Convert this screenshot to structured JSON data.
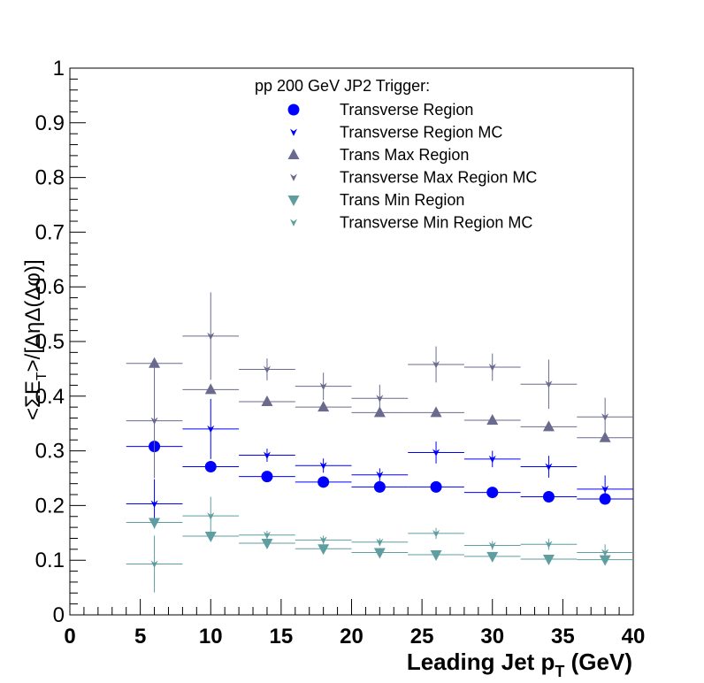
{
  "chart_data": {
    "type": "scatter",
    "legend_title": "pp 200 GeV JP2 Trigger:",
    "xlabel": "Leading Jet p",
    "xlabel_sub": "T",
    "xlabel_suffix": " (GeV)",
    "ylabel_parts": [
      "<ΣE",
      "T",
      ">/[ΔηΔ(Δφ)]"
    ],
    "xlim": [
      0,
      40
    ],
    "ylim": [
      0,
      1
    ],
    "xticks": [
      0,
      5,
      10,
      15,
      20,
      25,
      30,
      35,
      40
    ],
    "yticks": [
      0,
      0.1,
      0.2,
      0.3,
      0.4,
      0.5,
      0.6,
      0.7,
      0.8,
      0.9,
      1
    ],
    "ytick_labels": [
      "0",
      "0.1",
      "0.2",
      "0.3",
      "0.4",
      "0.5",
      "0.6",
      "0.7",
      "0.8",
      "0.9",
      "1"
    ],
    "legend_position": "top-center",
    "grid": false,
    "series": [
      {
        "name": "Transverse Region",
        "marker": "circle",
        "color": "#0000ff",
        "points": [
          {
            "x": 6,
            "y": 0.308,
            "xlo": 4,
            "xhi": 8,
            "err": 0.0
          },
          {
            "x": 10,
            "y": 0.271,
            "xlo": 8,
            "xhi": 12,
            "err": 0.0
          },
          {
            "x": 14,
            "y": 0.253,
            "xlo": 12,
            "xhi": 16,
            "err": 0.0
          },
          {
            "x": 18,
            "y": 0.243,
            "xlo": 16,
            "xhi": 20,
            "err": 0.0
          },
          {
            "x": 22,
            "y": 0.234,
            "xlo": 20,
            "xhi": 24,
            "err": 0.0
          },
          {
            "x": 26,
            "y": 0.234,
            "xlo": 24,
            "xhi": 28,
            "err": 0.0
          },
          {
            "x": 30,
            "y": 0.224,
            "xlo": 28,
            "xhi": 32,
            "err": 0.0
          },
          {
            "x": 34,
            "y": 0.216,
            "xlo": 32,
            "xhi": 36,
            "err": 0.0
          },
          {
            "x": 38,
            "y": 0.212,
            "xlo": 36,
            "xhi": 40,
            "err": 0.0
          }
        ]
      },
      {
        "name": "Transverse Region MC",
        "marker": "star",
        "color": "#0000ff",
        "points": [
          {
            "x": 6,
            "y": 0.203,
            "xlo": 4,
            "xhi": 8,
            "err": 0.045
          },
          {
            "x": 10,
            "y": 0.34,
            "xlo": 8,
            "xhi": 12,
            "err": 0.055
          },
          {
            "x": 14,
            "y": 0.292,
            "xlo": 12,
            "xhi": 16,
            "err": 0.012
          },
          {
            "x": 18,
            "y": 0.273,
            "xlo": 16,
            "xhi": 20,
            "err": 0.013
          },
          {
            "x": 22,
            "y": 0.256,
            "xlo": 20,
            "xhi": 24,
            "err": 0.012
          },
          {
            "x": 26,
            "y": 0.297,
            "xlo": 24,
            "xhi": 28,
            "err": 0.02
          },
          {
            "x": 30,
            "y": 0.285,
            "xlo": 28,
            "xhi": 32,
            "err": 0.015
          },
          {
            "x": 34,
            "y": 0.271,
            "xlo": 32,
            "xhi": 36,
            "err": 0.02
          },
          {
            "x": 38,
            "y": 0.23,
            "xlo": 36,
            "xhi": 40,
            "err": 0.025
          }
        ]
      },
      {
        "name": "Trans Max Region",
        "marker": "triangle-up",
        "color": "#6a6a8e",
        "points": [
          {
            "x": 6,
            "y": 0.46,
            "xlo": 4,
            "xhi": 8,
            "err": 0.0
          },
          {
            "x": 10,
            "y": 0.412,
            "xlo": 8,
            "xhi": 12,
            "err": 0.0
          },
          {
            "x": 14,
            "y": 0.39,
            "xlo": 12,
            "xhi": 16,
            "err": 0.0
          },
          {
            "x": 18,
            "y": 0.38,
            "xlo": 16,
            "xhi": 20,
            "err": 0.0
          },
          {
            "x": 22,
            "y": 0.37,
            "xlo": 20,
            "xhi": 24,
            "err": 0.0
          },
          {
            "x": 26,
            "y": 0.37,
            "xlo": 24,
            "xhi": 28,
            "err": 0.0
          },
          {
            "x": 30,
            "y": 0.356,
            "xlo": 28,
            "xhi": 32,
            "err": 0.0
          },
          {
            "x": 34,
            "y": 0.344,
            "xlo": 32,
            "xhi": 36,
            "err": 0.0
          },
          {
            "x": 38,
            "y": 0.324,
            "xlo": 36,
            "xhi": 40,
            "err": 0.0
          }
        ]
      },
      {
        "name": "Transverse Max Region MC",
        "marker": "star",
        "color": "#6a6a8e",
        "points": [
          {
            "x": 6,
            "y": 0.355,
            "xlo": 4,
            "xhi": 8,
            "err": 0.105
          },
          {
            "x": 10,
            "y": 0.51,
            "xlo": 8,
            "xhi": 12,
            "err": 0.08
          },
          {
            "x": 14,
            "y": 0.449,
            "xlo": 12,
            "xhi": 16,
            "err": 0.02
          },
          {
            "x": 18,
            "y": 0.418,
            "xlo": 16,
            "xhi": 20,
            "err": 0.025
          },
          {
            "x": 22,
            "y": 0.396,
            "xlo": 20,
            "xhi": 24,
            "err": 0.025
          },
          {
            "x": 26,
            "y": 0.458,
            "xlo": 24,
            "xhi": 28,
            "err": 0.033
          },
          {
            "x": 30,
            "y": 0.453,
            "xlo": 28,
            "xhi": 32,
            "err": 0.025
          },
          {
            "x": 34,
            "y": 0.422,
            "xlo": 32,
            "xhi": 36,
            "err": 0.045
          },
          {
            "x": 38,
            "y": 0.362,
            "xlo": 36,
            "xhi": 40,
            "err": 0.035
          }
        ]
      },
      {
        "name": "Trans Min Region",
        "marker": "triangle-down",
        "color": "#5f9ea0",
        "points": [
          {
            "x": 6,
            "y": 0.169,
            "xlo": 4,
            "xhi": 8,
            "err": 0.0
          },
          {
            "x": 10,
            "y": 0.144,
            "xlo": 8,
            "xhi": 12,
            "err": 0.0
          },
          {
            "x": 14,
            "y": 0.131,
            "xlo": 12,
            "xhi": 16,
            "err": 0.0
          },
          {
            "x": 18,
            "y": 0.121,
            "xlo": 16,
            "xhi": 20,
            "err": 0.0
          },
          {
            "x": 22,
            "y": 0.114,
            "xlo": 20,
            "xhi": 24,
            "err": 0.0
          },
          {
            "x": 26,
            "y": 0.11,
            "xlo": 24,
            "xhi": 28,
            "err": 0.0
          },
          {
            "x": 30,
            "y": 0.107,
            "xlo": 28,
            "xhi": 32,
            "err": 0.0
          },
          {
            "x": 34,
            "y": 0.102,
            "xlo": 32,
            "xhi": 36,
            "err": 0.0
          },
          {
            "x": 38,
            "y": 0.101,
            "xlo": 36,
            "xhi": 40,
            "err": 0.0
          }
        ]
      },
      {
        "name": "Transverse Min Region MC",
        "marker": "star",
        "color": "#5f9ea0",
        "points": [
          {
            "x": 6,
            "y": 0.093,
            "xlo": 4,
            "xhi": 8,
            "err": 0.052
          },
          {
            "x": 10,
            "y": 0.181,
            "xlo": 8,
            "xhi": 12,
            "err": 0.035
          },
          {
            "x": 14,
            "y": 0.146,
            "xlo": 12,
            "xhi": 16,
            "err": 0.008
          },
          {
            "x": 18,
            "y": 0.137,
            "xlo": 16,
            "xhi": 20,
            "err": 0.008
          },
          {
            "x": 22,
            "y": 0.133,
            "xlo": 20,
            "xhi": 24,
            "err": 0.007
          },
          {
            "x": 26,
            "y": 0.149,
            "xlo": 24,
            "xhi": 28,
            "err": 0.01
          },
          {
            "x": 30,
            "y": 0.127,
            "xlo": 28,
            "xhi": 32,
            "err": 0.008
          },
          {
            "x": 34,
            "y": 0.129,
            "xlo": 32,
            "xhi": 36,
            "err": 0.01
          },
          {
            "x": 38,
            "y": 0.114,
            "xlo": 36,
            "xhi": 40,
            "err": 0.015
          }
        ]
      }
    ]
  }
}
